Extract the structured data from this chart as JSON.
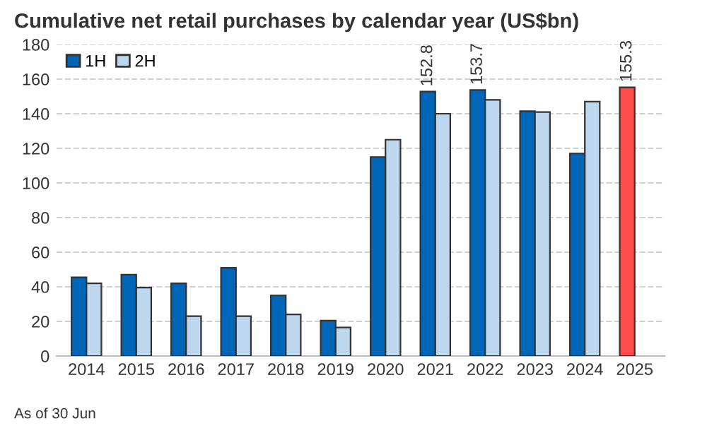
{
  "chart_data": {
    "type": "bar",
    "title": "Cumulative net retail purchases by calendar year (US$bn)",
    "categories": [
      "2014",
      "2015",
      "2016",
      "2017",
      "2018",
      "2019",
      "2020",
      "2021",
      "2022",
      "2023",
      "2024",
      "2025"
    ],
    "series": [
      {
        "name": "1H",
        "color": "#0066b8",
        "colors": [
          "#0066b8",
          "#0066b8",
          "#0066b8",
          "#0066b8",
          "#0066b8",
          "#0066b8",
          "#0066b8",
          "#0066b8",
          "#0066b8",
          "#0066b8",
          "#0066b8",
          "#ff4b4b"
        ],
        "values": [
          45.5,
          47,
          42,
          51,
          35,
          20.5,
          115,
          152.8,
          153.7,
          141.5,
          117,
          155.3
        ],
        "value_labels": [
          null,
          null,
          null,
          null,
          null,
          null,
          null,
          "152.8",
          "153.7",
          null,
          null,
          "155.3"
        ]
      },
      {
        "name": "2H",
        "color": "#bdd7ee",
        "values": [
          42,
          39.5,
          23,
          23,
          24,
          16.5,
          125,
          140,
          148,
          141,
          147,
          null
        ]
      }
    ],
    "ylim": [
      0,
      180
    ],
    "yticks": [
      0,
      20,
      40,
      60,
      80,
      100,
      120,
      140,
      160,
      180
    ],
    "grid": "y",
    "legend": "top left",
    "annotations": [
      "As of 30 Jun"
    ]
  }
}
